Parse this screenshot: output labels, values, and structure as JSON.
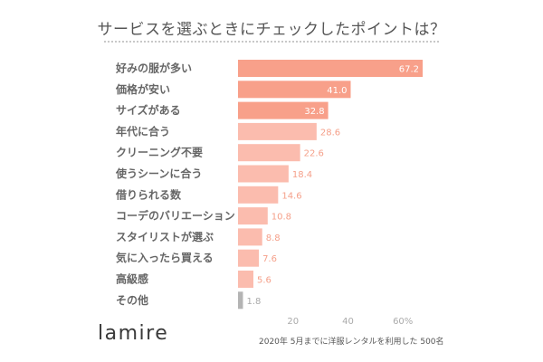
{
  "title": "サービスを選ぶときにチェックしたポイントは？",
  "logo": "lamire",
  "note": "2020年 5月までに洋服レンタルを利用した 500名",
  "chart_data": {
    "type": "bar",
    "orientation": "horizontal",
    "title": "サービスを選ぶときにチェックしたポイントは？",
    "categories": [
      "好みの服が多い",
      "価格が安い",
      "サイズがある",
      "年代に合う",
      "クリーニング不要",
      "使うシーンに合う",
      "借りられる数",
      "コーデのバリエーション",
      "スタイリストが選ぶ",
      "気に入ったら買える",
      "高級感",
      "その他"
    ],
    "values": [
      67.2,
      41.0,
      32.8,
      28.6,
      22.6,
      18.4,
      14.6,
      10.8,
      8.8,
      7.6,
      5.6,
      1.8
    ],
    "value_labels": [
      "67.2",
      "41.0",
      "32.8",
      "28.6",
      "22.6",
      "18.4",
      "14.6",
      "10.8",
      "8.8",
      "7.6",
      "5.6",
      "1.8"
    ],
    "xticks": [
      "20",
      "40",
      "60%"
    ],
    "xlim": [
      0,
      70
    ],
    "grid": false,
    "colors": {
      "top": "#f8a08a",
      "mid": "#fbbcae",
      "other": "#b4b4b4",
      "label_inside": "#ffffff",
      "label_outside": "#f5a08a"
    }
  }
}
